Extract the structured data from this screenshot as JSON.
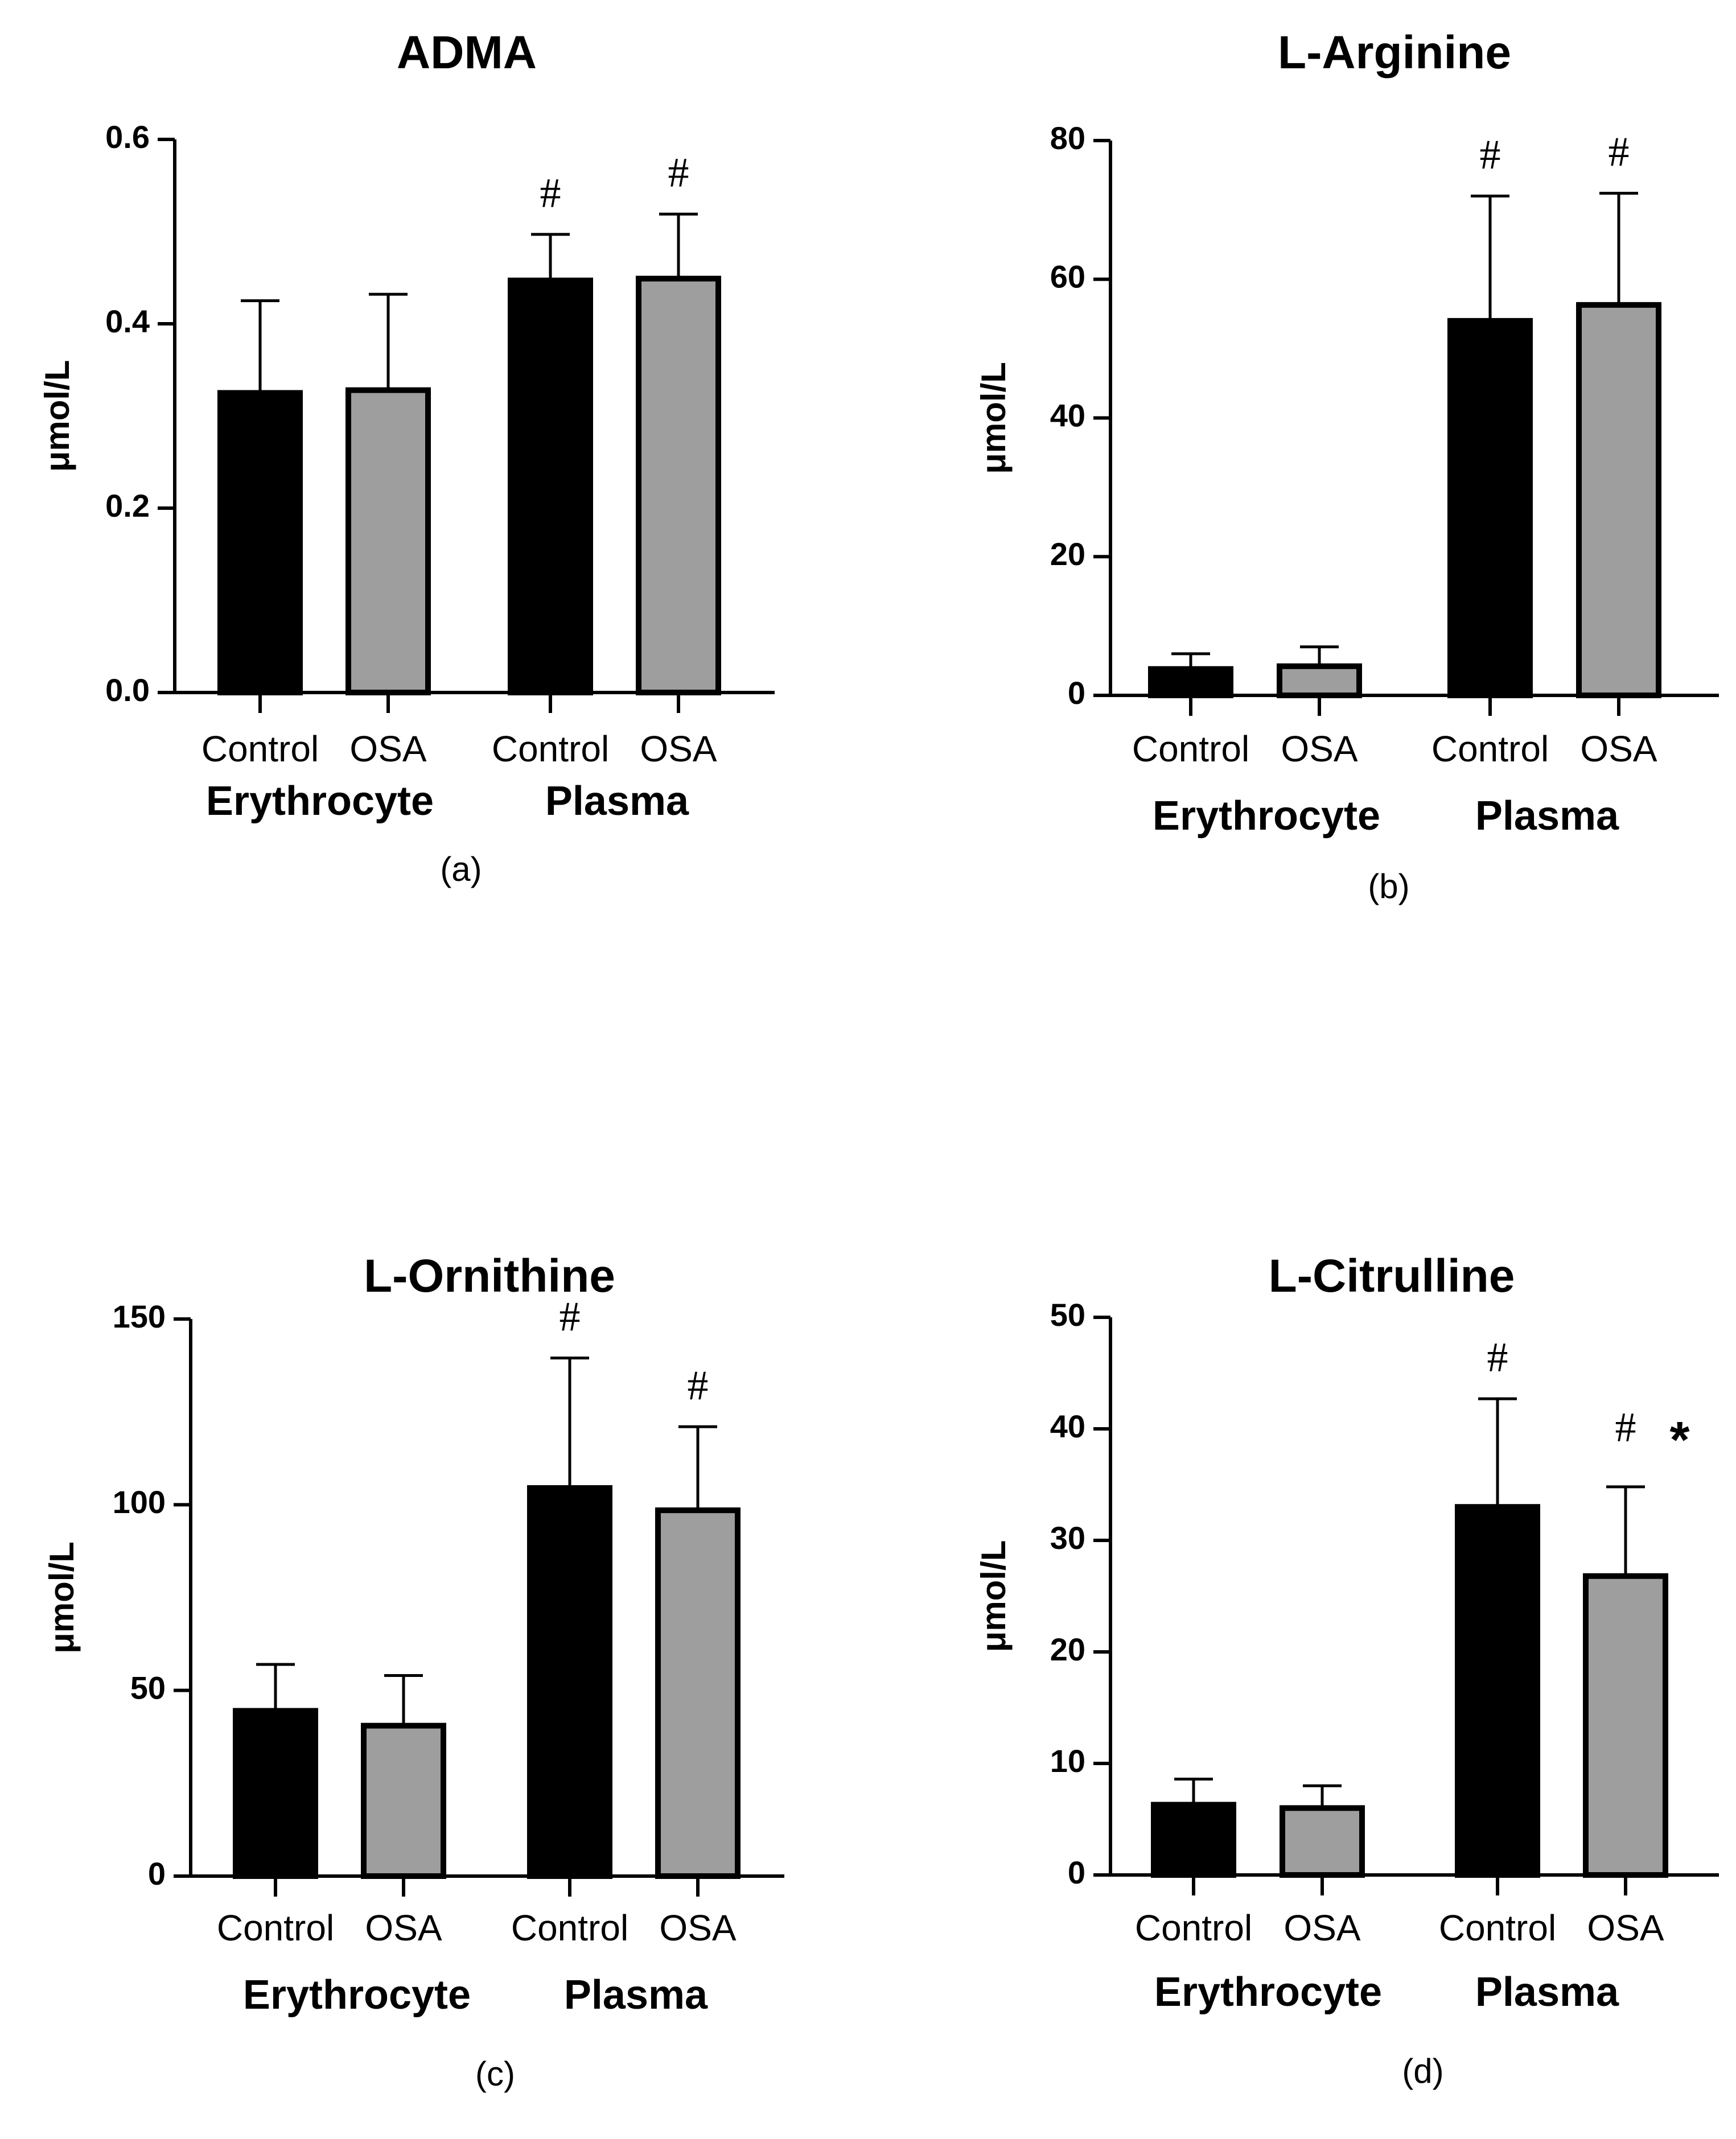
{
  "chart_data": [
    {
      "panel": "(a)",
      "type": "bar",
      "title": "ADMA",
      "ylabel": "μmol/L",
      "ylim": [
        0,
        0.6
      ],
      "yticks": [
        "0.0",
        "0.2",
        "0.4",
        "0.6"
      ],
      "ytick_values": [
        0,
        0.2,
        0.4,
        0.6
      ],
      "categories": [
        "Control",
        "OSA",
        "Control",
        "OSA"
      ],
      "groups": [
        "Erythrocyte",
        "Plasma"
      ],
      "values": [
        0.325,
        0.328,
        0.447,
        0.449
      ],
      "errors": [
        0.1,
        0.104,
        0.05,
        0.07
      ],
      "colors": [
        "#000000",
        "#9e9e9e",
        "#000000",
        "#9e9e9e"
      ],
      "annotations": [
        "",
        "",
        "#",
        "#"
      ]
    },
    {
      "panel": "(b)",
      "type": "bar",
      "title": "L-Arginine",
      "ylabel": "μmol/L",
      "ylim": [
        0,
        80
      ],
      "yticks": [
        "0",
        "20",
        "40",
        "60",
        "80"
      ],
      "ytick_values": [
        0,
        20,
        40,
        60,
        80
      ],
      "categories": [
        "Control",
        "OSA",
        "Control",
        "OSA"
      ],
      "groups": [
        "Erythrocyte",
        "Plasma"
      ],
      "values": [
        3.8,
        4.2,
        54.0,
        56.3
      ],
      "errors": [
        2.2,
        2.8,
        18.0,
        16.1
      ],
      "colors": [
        "#000000",
        "#9e9e9e",
        "#000000",
        "#9e9e9e"
      ],
      "annotations": [
        "",
        "",
        "#",
        "#"
      ]
    },
    {
      "panel": "(c)",
      "type": "bar",
      "title": "L-Ornithine",
      "ylabel": "μmol/L",
      "ylim": [
        0,
        150
      ],
      "yticks": [
        "0",
        "50",
        "100",
        "150"
      ],
      "ytick_values": [
        0,
        50,
        100,
        150
      ],
      "categories": [
        "Control",
        "OSA",
        "Control",
        "OSA"
      ],
      "groups": [
        "Erythrocyte",
        "Plasma"
      ],
      "values": [
        44.5,
        40.5,
        104.5,
        98.5
      ],
      "errors": [
        12.5,
        13.5,
        35.0,
        22.5
      ],
      "colors": [
        "#000000",
        "#9e9e9e",
        "#000000",
        "#9e9e9e"
      ],
      "annotations": [
        "",
        "",
        "#",
        "#"
      ]
    },
    {
      "panel": "(d)",
      "type": "bar",
      "title": "L-Citrulline",
      "ylabel": "μmol/L",
      "ylim": [
        0,
        50
      ],
      "yticks": [
        "0",
        "10",
        "20",
        "30",
        "40",
        "50"
      ],
      "ytick_values": [
        0,
        10,
        20,
        30,
        40,
        50
      ],
      "categories": [
        "Control",
        "OSA",
        "Control",
        "OSA"
      ],
      "groups": [
        "Erythrocyte",
        "Plasma"
      ],
      "values": [
        6.3,
        6.0,
        33.0,
        26.8
      ],
      "errors": [
        2.3,
        2.0,
        9.7,
        8.0
      ],
      "colors": [
        "#000000",
        "#9e9e9e",
        "#000000",
        "#9e9e9e"
      ],
      "annotations": [
        "",
        "",
        "#",
        "# *"
      ]
    }
  ]
}
